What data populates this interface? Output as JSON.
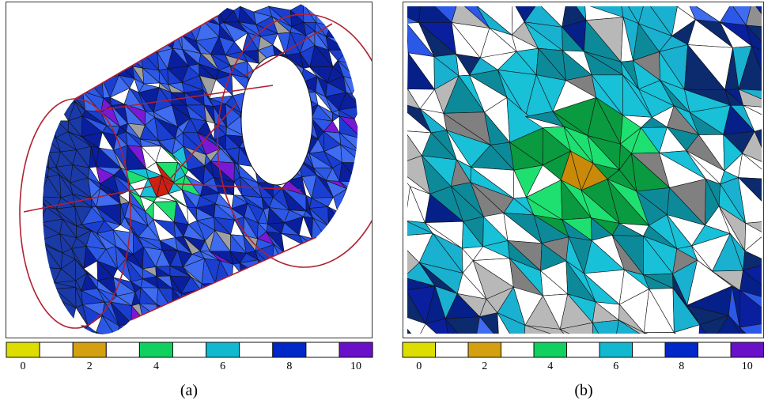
{
  "panels": [
    {
      "caption": "(a)",
      "colorbar": {
        "labels": [
          "0",
          "2",
          "4",
          "6",
          "8",
          "10"
        ],
        "colors": [
          "#dddd00",
          "#d4a010",
          "#10d060",
          "#10b8d0",
          "#0028c8",
          "#6a10c8"
        ]
      }
    },
    {
      "caption": "(b)",
      "colorbar": {
        "labels": [
          "0",
          "2",
          "4",
          "6",
          "8",
          "10"
        ],
        "colors": [
          "#dddd00",
          "#d4a010",
          "#10d060",
          "#10b8d0",
          "#0028c8",
          "#6a10c8"
        ]
      }
    }
  ]
}
